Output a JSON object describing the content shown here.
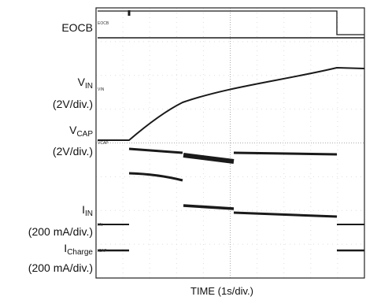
{
  "chart_data": {
    "type": "line",
    "xlabel": "TIME (1s/div.)",
    "channels": [
      {
        "name": "EOCB",
        "scale": ""
      },
      {
        "name": "V",
        "sub": "IN",
        "scale": "(2V/div.)"
      },
      {
        "name": "V",
        "sub": "CAP",
        "scale": "(2V/div.)"
      },
      {
        "name": "I",
        "sub": "IN",
        "scale": "(200 mA/div.)"
      },
      {
        "name": "I",
        "sub": "Charge",
        "scale": "(200 mA/div.)"
      }
    ],
    "marker_labels": [
      "EOCB",
      "VIN",
      "VCAP",
      "IIN",
      "ICAP"
    ],
    "x_divisions": 10,
    "y_divisions": 8,
    "trace_color": "#1a1a1a",
    "grid": true
  }
}
